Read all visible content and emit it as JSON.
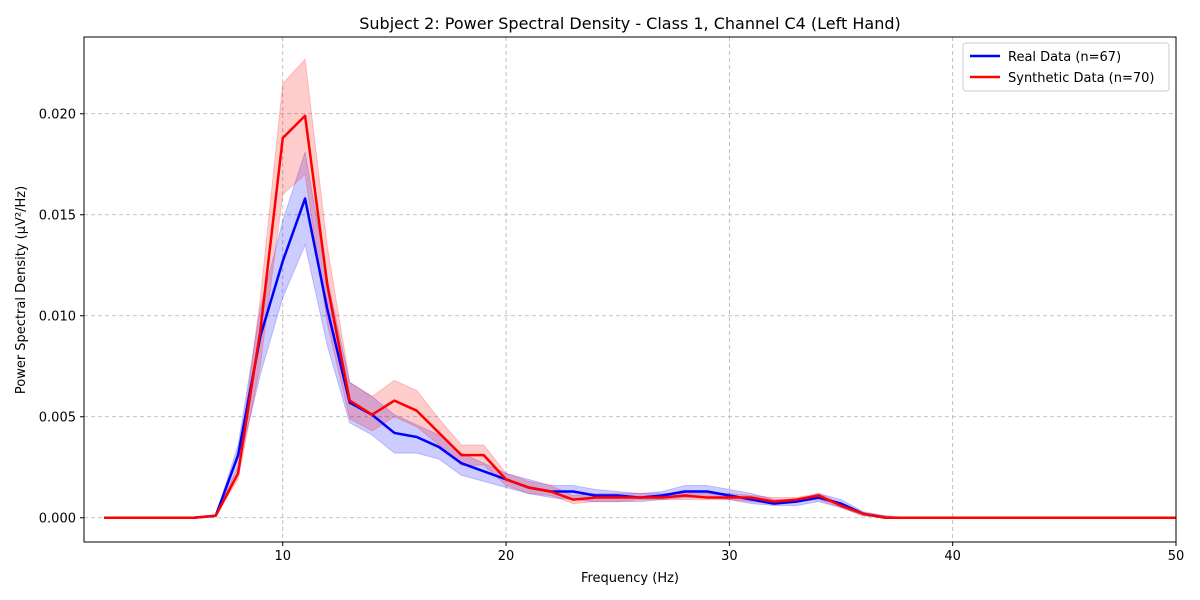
{
  "chart_data": {
    "type": "line",
    "title": "Subject 2: Power Spectral Density - Class 1, Channel C4 (Left Hand)",
    "xlabel": "Frequency (Hz)",
    "ylabel": "Power Spectral Density (μV²/Hz)",
    "xlim": [
      1.1,
      50
    ],
    "ylim": [
      -0.0012,
      0.0238
    ],
    "xticks": [
      10,
      20,
      30,
      40,
      50
    ],
    "xtick_labels": [
      "10",
      "20",
      "30",
      "40",
      "50"
    ],
    "yticks": [
      0,
      0.005,
      0.01,
      0.015,
      0.02
    ],
    "ytick_labels": [
      "0.000",
      "0.005",
      "0.010",
      "0.015",
      "0.020"
    ],
    "grid": true,
    "legend_position": "top-right",
    "x": [
      2,
      3,
      4,
      5,
      6,
      7,
      8,
      9,
      10,
      11,
      12,
      13,
      14,
      15,
      16,
      17,
      18,
      19,
      20,
      21,
      22,
      23,
      24,
      25,
      26,
      27,
      28,
      29,
      30,
      31,
      32,
      33,
      34,
      35,
      36,
      37,
      38,
      39,
      40,
      41,
      42,
      43,
      44,
      45,
      46,
      47,
      48,
      49,
      50
    ],
    "series": [
      {
        "name": "Real Data (n=67)",
        "color": "#0000ff",
        "band_color": "#0000ff",
        "values": [
          0,
          0,
          0,
          0,
          0,
          0.0001,
          0.0031,
          0.009,
          0.0127,
          0.0158,
          0.0103,
          0.0057,
          0.0051,
          0.0042,
          0.004,
          0.0035,
          0.0027,
          0.0023,
          0.0019,
          0.0015,
          0.0013,
          0.0013,
          0.0011,
          0.0011,
          0.001,
          0.0011,
          0.0013,
          0.0013,
          0.0011,
          0.0009,
          0.0007,
          0.0008,
          0.001,
          0.0007,
          0.0002,
          0,
          0,
          0,
          0,
          0,
          0,
          0,
          0,
          0,
          0,
          0,
          0,
          0,
          0
        ],
        "lower": [
          0,
          0,
          0,
          0,
          0,
          0.0001,
          0.0025,
          0.0071,
          0.0109,
          0.0135,
          0.0085,
          0.0047,
          0.0041,
          0.0032,
          0.0032,
          0.0029,
          0.0021,
          0.0018,
          0.0015,
          0.0012,
          0.001,
          0.0009,
          0.0008,
          0.0008,
          0.0008,
          0.0009,
          0.001,
          0.001,
          0.0009,
          0.0007,
          0.0006,
          0.0006,
          0.0008,
          0.0005,
          0.0001,
          0,
          0,
          0,
          0,
          0,
          0,
          0,
          0,
          0,
          0,
          0,
          0,
          0,
          0
        ],
        "upper": [
          0,
          0,
          0,
          0,
          0,
          0.0001,
          0.0036,
          0.0104,
          0.0147,
          0.0181,
          0.0118,
          0.0067,
          0.006,
          0.0051,
          0.0046,
          0.0041,
          0.0032,
          0.0027,
          0.0022,
          0.0019,
          0.0016,
          0.0016,
          0.0014,
          0.0013,
          0.0012,
          0.0013,
          0.0016,
          0.0016,
          0.0014,
          0.0012,
          0.0009,
          0.0009,
          0.0012,
          0.0009,
          0.0003,
          0.0001,
          0,
          0,
          0,
          0,
          0,
          0,
          0,
          0,
          0,
          0,
          0,
          0,
          0
        ]
      },
      {
        "name": "Synthetic Data (n=70)",
        "color": "#ff0000",
        "band_color": "#ff0000",
        "values": [
          0,
          0,
          0,
          0,
          0,
          0.0001,
          0.0022,
          0.0093,
          0.0188,
          0.0199,
          0.0115,
          0.0058,
          0.0051,
          0.0058,
          0.0053,
          0.0042,
          0.0031,
          0.0031,
          0.0019,
          0.0015,
          0.0013,
          0.0009,
          0.001,
          0.001,
          0.001,
          0.001,
          0.0011,
          0.001,
          0.001,
          0.001,
          0.0008,
          0.0009,
          0.0011,
          0.0006,
          0.0002,
          0,
          0,
          0,
          0,
          0,
          0,
          0,
          0,
          0,
          0,
          0,
          0,
          0,
          0
        ],
        "lower": [
          0,
          0,
          0,
          0,
          0,
          0.0001,
          0.0019,
          0.0076,
          0.016,
          0.017,
          0.0096,
          0.0049,
          0.0043,
          0.005,
          0.0045,
          0.0036,
          0.0026,
          0.0026,
          0.0016,
          0.0012,
          0.0011,
          0.0007,
          0.0008,
          0.0008,
          0.0009,
          0.0009,
          0.0009,
          0.0009,
          0.0009,
          0.0008,
          0.0007,
          0.0008,
          0.0009,
          0.0005,
          0.0001,
          0,
          0,
          0,
          0,
          0,
          0,
          0,
          0,
          0,
          0,
          0,
          0,
          0,
          0
        ],
        "upper": [
          0,
          0,
          0,
          0,
          0,
          0.0001,
          0.0025,
          0.0109,
          0.0215,
          0.0227,
          0.0134,
          0.0067,
          0.006,
          0.0068,
          0.0063,
          0.0049,
          0.0036,
          0.0036,
          0.0022,
          0.0018,
          0.0016,
          0.0011,
          0.0012,
          0.0012,
          0.0012,
          0.0012,
          0.0012,
          0.0012,
          0.0012,
          0.0011,
          0.001,
          0.001,
          0.0012,
          0.0007,
          0.0002,
          0.0001,
          0,
          0,
          0,
          0,
          0,
          0,
          0,
          0,
          0,
          0,
          0,
          0,
          0
        ]
      }
    ]
  }
}
